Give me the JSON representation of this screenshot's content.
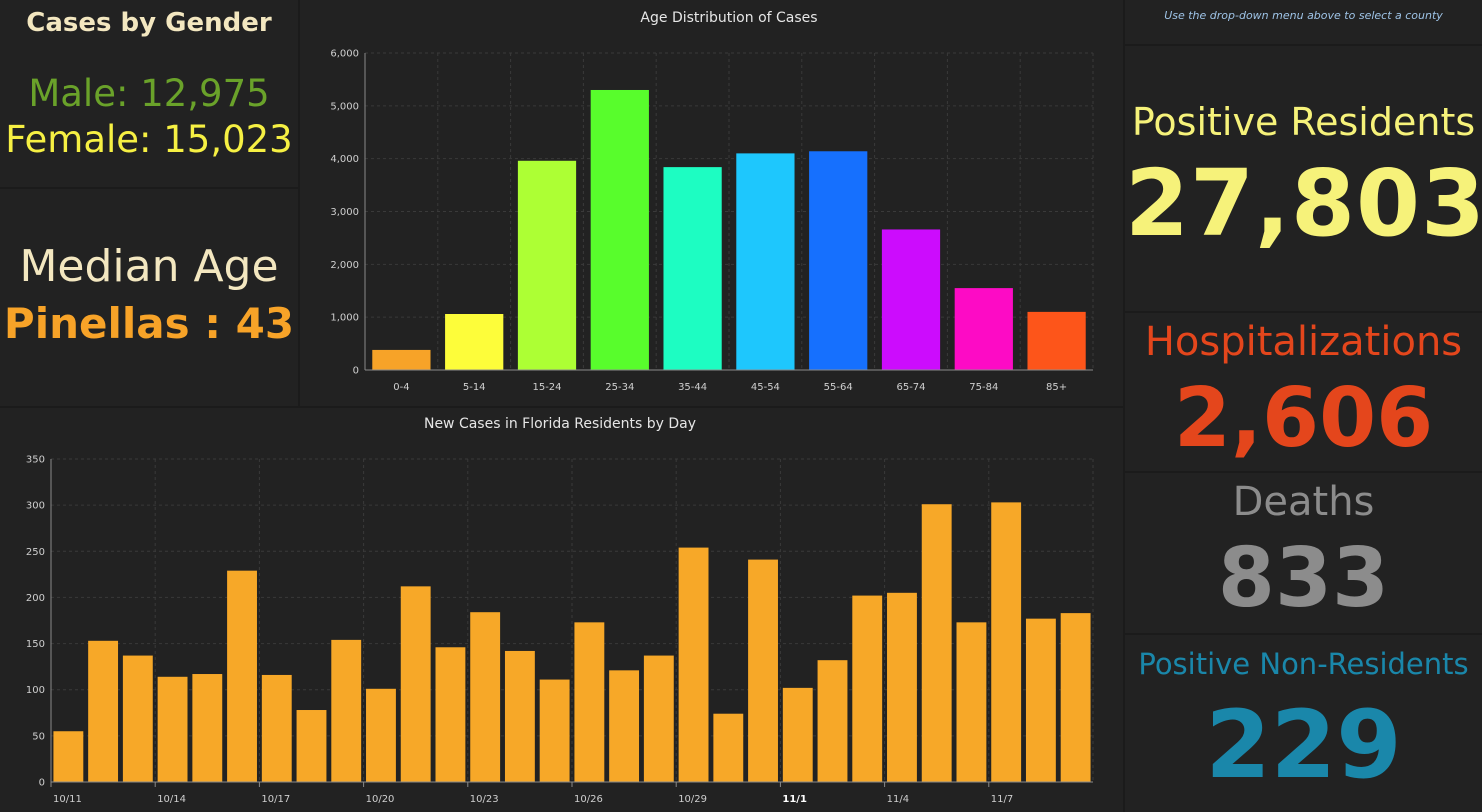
{
  "gender": {
    "title": "Cases by Gender",
    "male_text": "Male: 12,975",
    "female_text": "Female: 15,023"
  },
  "median_age": {
    "title": "Median Age",
    "value_text": "Pinellas : 43"
  },
  "county_hint": "Use the drop-down menu above to select a county",
  "stats": {
    "positive_residents": {
      "label": "Positive Residents",
      "value": "27,803",
      "color": "#f6f27a"
    },
    "hospitalizations": {
      "label": "Hospitalizations",
      "value": "2,606",
      "color": "#e4461c"
    },
    "deaths": {
      "label": "Deaths",
      "value": "833",
      "color": "#8c8c8c"
    },
    "positive_non_residents": {
      "label": "Positive Non-Residents",
      "value": "229",
      "color": "#1a87aa"
    }
  },
  "colors": {
    "background": "#222222",
    "grid": "#3a3a3a",
    "axis_text": "#cfcfcf",
    "daily_bar": "#f7a828"
  },
  "chart_data": [
    {
      "type": "bar",
      "title": "Age Distribution of Cases",
      "categories": [
        "0-4",
        "5-14",
        "15-24",
        "25-34",
        "35-44",
        "45-54",
        "55-64",
        "65-74",
        "75-84",
        "85+"
      ],
      "values": [
        380,
        1060,
        3960,
        5300,
        3840,
        4100,
        4140,
        2660,
        1550,
        1100
      ],
      "bar_colors": [
        "#f7a328",
        "#fdfd3a",
        "#adff34",
        "#58fd2c",
        "#1dfdc2",
        "#1ec7fd",
        "#1670fe",
        "#cc0cfd",
        "#fd0bc5",
        "#fd551a"
      ],
      "ylim": [
        0,
        6000
      ],
      "yticks": [
        "0",
        "1,000",
        "2,000",
        "3,000",
        "4,000",
        "5,000",
        "6,000"
      ],
      "grid": true
    },
    {
      "type": "bar",
      "title": "New Cases in Florida Residents by Day",
      "categories": [
        "10/11",
        "10/12",
        "10/13",
        "10/14",
        "10/15",
        "10/16",
        "10/17",
        "10/18",
        "10/19",
        "10/20",
        "10/21",
        "10/22",
        "10/23",
        "10/24",
        "10/25",
        "10/26",
        "10/27",
        "10/28",
        "10/29",
        "10/30",
        "10/31",
        "11/1",
        "11/2",
        "11/3",
        "11/4",
        "11/5",
        "11/6",
        "11/7",
        "11/8",
        "11/9"
      ],
      "values": [
        55,
        153,
        137,
        114,
        117,
        229,
        116,
        78,
        154,
        101,
        212,
        146,
        184,
        142,
        111,
        173,
        121,
        137,
        254,
        74,
        241,
        102,
        132,
        202,
        205,
        301,
        173,
        303,
        177,
        183
      ],
      "xtick_labels": [
        "10/11",
        "10/14",
        "10/17",
        "10/20",
        "10/23",
        "10/26",
        "10/29",
        "11/1",
        "11/4",
        "11/7"
      ],
      "bold_tick": "11/1",
      "ylim": [
        0,
        350
      ],
      "yticks": [
        "0",
        "50",
        "100",
        "150",
        "200",
        "250",
        "300",
        "350"
      ],
      "grid": true
    }
  ]
}
